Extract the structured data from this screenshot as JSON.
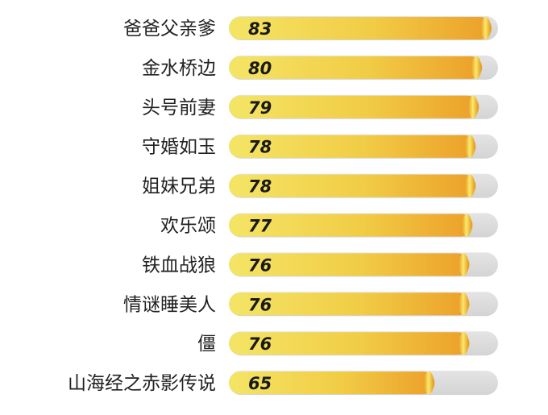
{
  "chart_data": {
    "type": "bar",
    "orientation": "horizontal",
    "categories": [
      "爸爸父亲爹",
      "金水桥边",
      "头号前妻",
      "守婚如玉",
      "姐妹兄弟",
      "欢乐颂",
      "铁血战狼",
      "情谜睡美人",
      "僵",
      "山海经之赤影传说"
    ],
    "values": [
      83,
      80,
      79,
      78,
      78,
      77,
      76,
      76,
      76,
      65
    ],
    "xlim": [
      0,
      83
    ],
    "title": "",
    "xlabel": "",
    "ylabel": "",
    "grid": false,
    "legend": "none",
    "value_labels": "inside-left",
    "colors": {
      "track": "#dcdcdc",
      "fill_start": "#f3e25a",
      "fill_end": "#eea12a",
      "cap_light": "#fbe66a",
      "cap_dark": "#e59a20",
      "text": "#222222"
    }
  }
}
